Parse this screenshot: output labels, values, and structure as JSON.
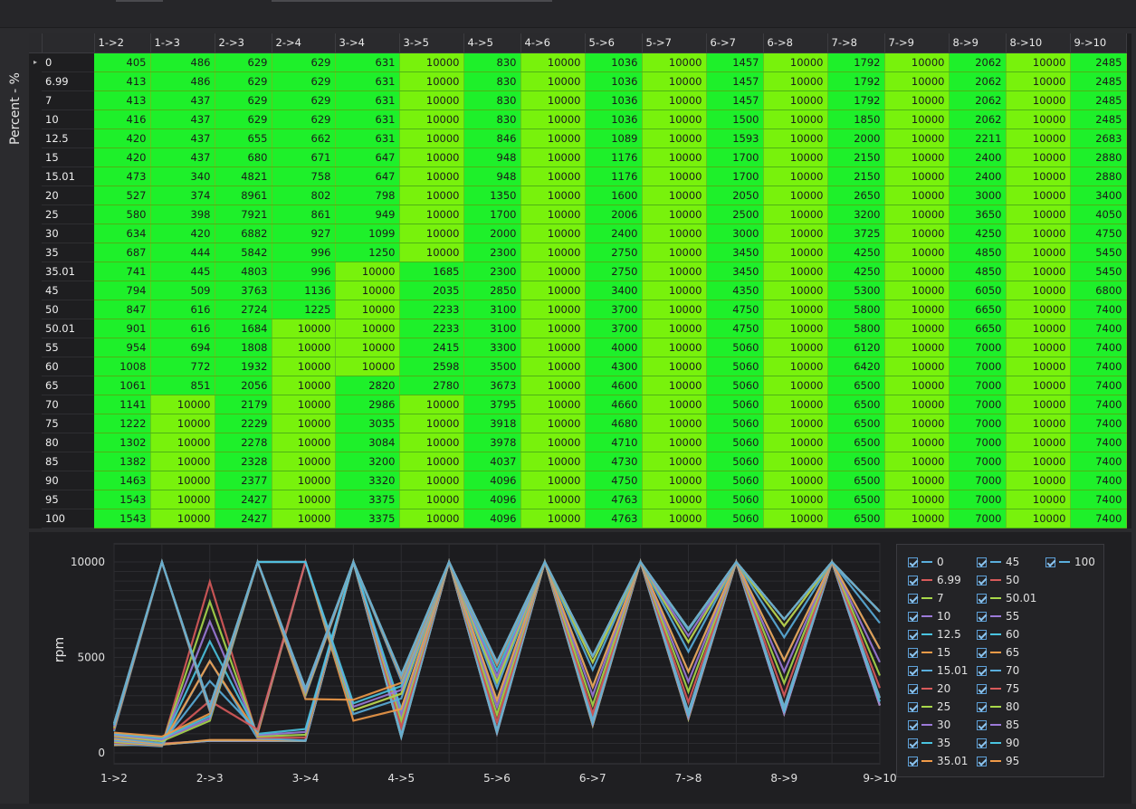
{
  "table": {
    "axis_label": "Percent - %",
    "columns": [
      "1->2",
      "1->3",
      "2->3",
      "2->4",
      "3->4",
      "3->5",
      "4->5",
      "4->6",
      "5->6",
      "5->7",
      "6->7",
      "6->8",
      "7->8",
      "7->9",
      "8->9",
      "8->10",
      "9->10"
    ],
    "rows": [
      {
        "label": "0",
        "values": [
          405,
          486,
          629,
          629,
          631,
          10000,
          830,
          10000,
          1036,
          10000,
          1457,
          10000,
          1792,
          10000,
          2062,
          10000,
          2485
        ]
      },
      {
        "label": "6.99",
        "values": [
          413,
          486,
          629,
          629,
          631,
          10000,
          830,
          10000,
          1036,
          10000,
          1457,
          10000,
          1792,
          10000,
          2062,
          10000,
          2485
        ]
      },
      {
        "label": "7",
        "values": [
          413,
          437,
          629,
          629,
          631,
          10000,
          830,
          10000,
          1036,
          10000,
          1457,
          10000,
          1792,
          10000,
          2062,
          10000,
          2485
        ]
      },
      {
        "label": "10",
        "values": [
          416,
          437,
          629,
          629,
          631,
          10000,
          830,
          10000,
          1036,
          10000,
          1500,
          10000,
          1850,
          10000,
          2062,
          10000,
          2485
        ]
      },
      {
        "label": "12.5",
        "values": [
          420,
          437,
          655,
          662,
          631,
          10000,
          846,
          10000,
          1089,
          10000,
          1593,
          10000,
          2000,
          10000,
          2211,
          10000,
          2683
        ]
      },
      {
        "label": "15",
        "values": [
          420,
          437,
          680,
          671,
          647,
          10000,
          948,
          10000,
          1176,
          10000,
          1700,
          10000,
          2150,
          10000,
          2400,
          10000,
          2880
        ]
      },
      {
        "label": "15.01",
        "values": [
          473,
          340,
          4821,
          758,
          647,
          10000,
          948,
          10000,
          1176,
          10000,
          1700,
          10000,
          2150,
          10000,
          2400,
          10000,
          2880
        ]
      },
      {
        "label": "20",
        "values": [
          527,
          374,
          8961,
          802,
          798,
          10000,
          1350,
          10000,
          1600,
          10000,
          2050,
          10000,
          2650,
          10000,
          3000,
          10000,
          3400
        ]
      },
      {
        "label": "25",
        "values": [
          580,
          398,
          7921,
          861,
          949,
          10000,
          1700,
          10000,
          2006,
          10000,
          2500,
          10000,
          3200,
          10000,
          3650,
          10000,
          4050
        ]
      },
      {
        "label": "30",
        "values": [
          634,
          420,
          6882,
          927,
          1099,
          10000,
          2000,
          10000,
          2400,
          10000,
          3000,
          10000,
          3725,
          10000,
          4250,
          10000,
          4750
        ]
      },
      {
        "label": "35",
        "values": [
          687,
          444,
          5842,
          996,
          1250,
          10000,
          2300,
          10000,
          2750,
          10000,
          3450,
          10000,
          4250,
          10000,
          4850,
          10000,
          5450
        ]
      },
      {
        "label": "35.01",
        "values": [
          741,
          445,
          4803,
          996,
          10000,
          1685,
          2300,
          10000,
          2750,
          10000,
          3450,
          10000,
          4250,
          10000,
          4850,
          10000,
          5450
        ]
      },
      {
        "label": "45",
        "values": [
          794,
          509,
          3763,
          1136,
          10000,
          2035,
          2850,
          10000,
          3400,
          10000,
          4350,
          10000,
          5300,
          10000,
          6050,
          10000,
          6800
        ]
      },
      {
        "label": "50",
        "values": [
          847,
          616,
          2724,
          1225,
          10000,
          2233,
          3100,
          10000,
          3700,
          10000,
          4750,
          10000,
          5800,
          10000,
          6650,
          10000,
          7400
        ]
      },
      {
        "label": "50.01",
        "values": [
          901,
          616,
          1684,
          10000,
          10000,
          2233,
          3100,
          10000,
          3700,
          10000,
          4750,
          10000,
          5800,
          10000,
          6650,
          10000,
          7400
        ]
      },
      {
        "label": "55",
        "values": [
          954,
          694,
          1808,
          10000,
          10000,
          2415,
          3300,
          10000,
          4000,
          10000,
          5060,
          10000,
          6120,
          10000,
          7000,
          10000,
          7400
        ]
      },
      {
        "label": "60",
        "values": [
          1008,
          772,
          1932,
          10000,
          10000,
          2598,
          3500,
          10000,
          4300,
          10000,
          5060,
          10000,
          6420,
          10000,
          7000,
          10000,
          7400
        ]
      },
      {
        "label": "65",
        "values": [
          1061,
          851,
          2056,
          10000,
          2820,
          2780,
          3673,
          10000,
          4600,
          10000,
          5060,
          10000,
          6500,
          10000,
          7000,
          10000,
          7400
        ]
      },
      {
        "label": "70",
        "values": [
          1141,
          10000,
          2179,
          10000,
          2986,
          10000,
          3795,
          10000,
          4660,
          10000,
          5060,
          10000,
          6500,
          10000,
          7000,
          10000,
          7400
        ]
      },
      {
        "label": "75",
        "values": [
          1222,
          10000,
          2229,
          10000,
          3035,
          10000,
          3918,
          10000,
          4680,
          10000,
          5060,
          10000,
          6500,
          10000,
          7000,
          10000,
          7400
        ]
      },
      {
        "label": "80",
        "values": [
          1302,
          10000,
          2278,
          10000,
          3084,
          10000,
          3978,
          10000,
          4710,
          10000,
          5060,
          10000,
          6500,
          10000,
          7000,
          10000,
          7400
        ]
      },
      {
        "label": "85",
        "values": [
          1382,
          10000,
          2328,
          10000,
          3200,
          10000,
          4037,
          10000,
          4730,
          10000,
          5060,
          10000,
          6500,
          10000,
          7000,
          10000,
          7400
        ]
      },
      {
        "label": "90",
        "values": [
          1463,
          10000,
          2377,
          10000,
          3320,
          10000,
          4096,
          10000,
          4750,
          10000,
          5060,
          10000,
          6500,
          10000,
          7000,
          10000,
          7400
        ]
      },
      {
        "label": "95",
        "values": [
          1543,
          10000,
          2427,
          10000,
          3375,
          10000,
          4096,
          10000,
          4763,
          10000,
          5060,
          10000,
          6500,
          10000,
          7000,
          10000,
          7400
        ]
      },
      {
        "label": "100",
        "values": [
          1543,
          10000,
          2427,
          10000,
          3375,
          10000,
          4096,
          10000,
          4763,
          10000,
          5060,
          10000,
          6500,
          10000,
          7000,
          10000,
          7400
        ]
      }
    ],
    "selected_row_indicator": "▸",
    "colors": {
      "cell_high": "#78f20c",
      "cell_low": "#1ef02a"
    }
  },
  "chart_data": {
    "type": "line",
    "ylabel": "rpm",
    "xlabel": "",
    "ylim": [
      0,
      10000
    ],
    "y_ticks": [
      "0",
      "5000",
      "10000"
    ],
    "x_tick_labels": [
      "1->2",
      "2->3",
      "3->4",
      "4->5",
      "5->6",
      "6->7",
      "7->8",
      "8->9",
      "9->10"
    ],
    "legend_placement": "right",
    "series_colors": [
      "#5aaedc",
      "#d85a5a",
      "#a8d84a",
      "#9c7ad8",
      "#4ac4e0",
      "#f09a48"
    ],
    "legend": [
      "0",
      "6.99",
      "7",
      "10",
      "12.5",
      "15",
      "15.01",
      "20",
      "25",
      "30",
      "35",
      "35.01",
      "45",
      "50",
      "50.01",
      "55",
      "60",
      "65",
      "70",
      "75",
      "80",
      "85",
      "90",
      "95",
      "100"
    ]
  }
}
